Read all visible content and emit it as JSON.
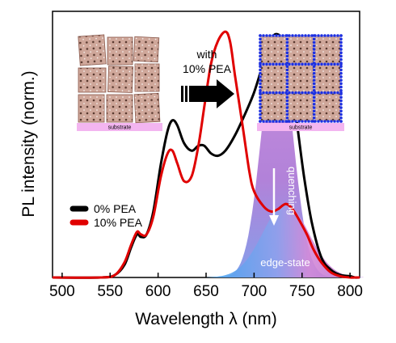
{
  "chart_data": {
    "type": "line",
    "xlabel": "Wavelength λ (nm)",
    "ylabel": "PL intensity (norm.)",
    "xlim": [
      490,
      810
    ],
    "ylim": [
      0,
      1.05
    ],
    "x_ticks": [
      500,
      550,
      600,
      650,
      700,
      750,
      800
    ],
    "x_tick_labels": [
      "500",
      "550",
      "600",
      "650",
      "700",
      "750",
      "800"
    ],
    "legend": {
      "placement": "left-middle"
    },
    "series": [
      {
        "name": "0% PEA",
        "color": "#000000",
        "x": [
          490,
          540,
          555,
          565,
          572,
          578,
          582,
          588,
          595,
          603,
          610,
          615,
          620,
          627,
          635,
          642,
          648,
          655,
          662,
          670,
          680,
          690,
          700,
          710,
          718,
          724,
          730,
          738,
          745,
          752,
          760,
          770,
          780,
          790,
          800,
          805,
          810
        ],
        "y": [
          0,
          0,
          0.01,
          0.05,
          0.12,
          0.17,
          0.16,
          0.17,
          0.26,
          0.45,
          0.58,
          0.62,
          0.6,
          0.53,
          0.5,
          0.52,
          0.52,
          0.49,
          0.48,
          0.5,
          0.56,
          0.64,
          0.73,
          0.85,
          0.94,
          0.96,
          0.93,
          0.8,
          0.6,
          0.4,
          0.22,
          0.08,
          0.03,
          0.01,
          0.005,
          0,
          0
        ]
      },
      {
        "name": "10% PEA",
        "color": "#e00000",
        "x": [
          490,
          540,
          555,
          565,
          572,
          578,
          582,
          588,
          595,
          603,
          610,
          615,
          620,
          627,
          635,
          642,
          648,
          655,
          662,
          670,
          675,
          680,
          688,
          695,
          700,
          710,
          718,
          725,
          733,
          740,
          748,
          755,
          762,
          770,
          780,
          790,
          800,
          805,
          810
        ],
        "y": [
          0,
          0,
          0.01,
          0.06,
          0.13,
          0.18,
          0.17,
          0.17,
          0.24,
          0.4,
          0.49,
          0.5,
          0.45,
          0.38,
          0.4,
          0.52,
          0.67,
          0.84,
          0.93,
          0.97,
          0.93,
          0.8,
          0.6,
          0.42,
          0.34,
          0.28,
          0.26,
          0.27,
          0.29,
          0.27,
          0.22,
          0.17,
          0.11,
          0.06,
          0.02,
          0.005,
          0,
          0,
          0
        ]
      }
    ],
    "annotations": {
      "arrow_label_line1": "with",
      "arrow_label_line2": "10% PEA",
      "substrate_left": "substrate",
      "substrate_right": "substrate",
      "quenching": "quenching",
      "edge_state": "edge-state"
    }
  }
}
